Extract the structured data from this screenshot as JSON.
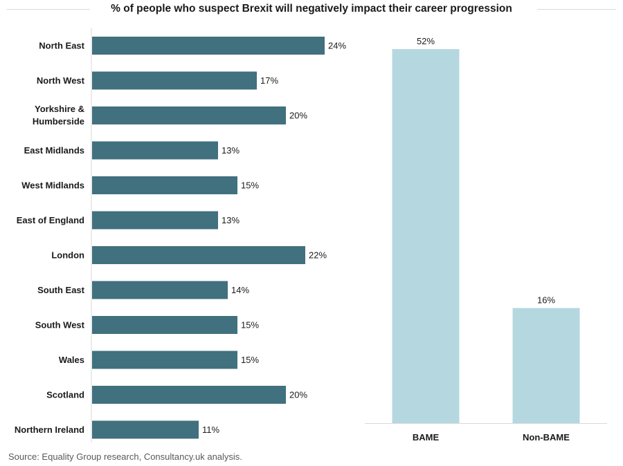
{
  "title": "% of people who suspect Brexit will negatively impact their career progression",
  "source": "Source: Equality Group research, Consultancy.uk analysis.",
  "colors": {
    "region_bar": "#41707f",
    "ethnicity_bar": "#b5d8e0",
    "axis": "#d9d9d9"
  },
  "chart_data": [
    {
      "type": "bar",
      "orientation": "horizontal",
      "categories": [
        "North East",
        "North West",
        "Yorkshire & Humberside",
        "East Midlands",
        "West Midlands",
        "East of England",
        "London",
        "South East",
        "South West",
        "Wales",
        "Scotland",
        "Northern Ireland"
      ],
      "values": [
        24,
        17,
        20,
        13,
        15,
        13,
        22,
        14,
        15,
        15,
        20,
        11
      ],
      "value_labels": [
        "24%",
        "17%",
        "20%",
        "13%",
        "15%",
        "13%",
        "22%",
        "14%",
        "15%",
        "15%",
        "20%",
        "11%"
      ],
      "xlim": [
        0,
        24
      ],
      "grid": false
    },
    {
      "type": "bar",
      "orientation": "vertical",
      "categories": [
        "BAME",
        "Non-BAME"
      ],
      "values": [
        52,
        16
      ],
      "value_labels": [
        "52%",
        "16%"
      ],
      "ylim": [
        0,
        52
      ],
      "grid": false
    }
  ]
}
